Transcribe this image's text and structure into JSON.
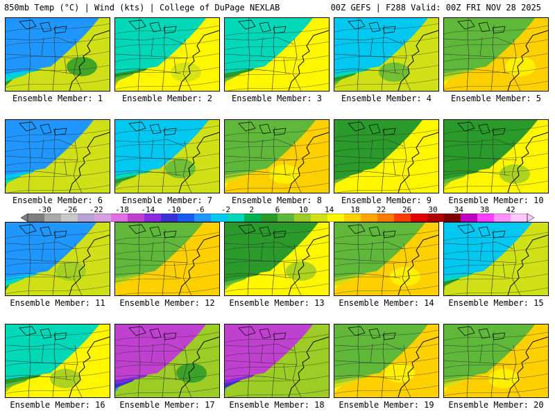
{
  "header": {
    "left": "850mb Temp (°C) | Wind (kts) | College of DuPage NEXLAB",
    "right": "00Z GEFS | F288 Valid: 00Z FRI NOV 28 2025"
  },
  "colorbar": {
    "labels": [
      "-30",
      "-26",
      "-22",
      "-18",
      "-14",
      "-10",
      "-6",
      "-2",
      "2",
      "6",
      "10",
      "14",
      "18",
      "22",
      "26",
      "30",
      "34",
      "38",
      "42"
    ],
    "colors": [
      "#7f7f7f",
      "#a9a9a9",
      "#c8c8c8",
      "#b9a3d6",
      "#d7a0e0",
      "#e070e6",
      "#c040d0",
      "#8a2be2",
      "#3b32d6",
      "#1a5bf0",
      "#1f97ff",
      "#00c8f0",
      "#00d8b8",
      "#00b050",
      "#2a9a2a",
      "#5fb83a",
      "#9ccc25",
      "#cfe017",
      "#fff600",
      "#ffd000",
      "#ffa500",
      "#ff7a00",
      "#ff3c00",
      "#e00000",
      "#b00000",
      "#800000",
      "#c000c0",
      "#ff40ff",
      "#ff90ff",
      "#ffc8ff"
    ]
  },
  "members": [
    {
      "caption": "Ensemble Member: 1",
      "theme": "cold"
    },
    {
      "caption": "Ensemble Member: 2",
      "theme": "mild"
    },
    {
      "caption": "Ensemble Member: 3",
      "theme": "mild"
    },
    {
      "caption": "Ensemble Member: 4",
      "theme": "cool"
    },
    {
      "caption": "Ensemble Member: 5",
      "theme": "warm"
    },
    {
      "caption": "Ensemble Member: 6",
      "theme": "cold"
    },
    {
      "caption": "Ensemble Member: 7",
      "theme": "cool"
    },
    {
      "caption": "Ensemble Member: 8",
      "theme": "warm"
    },
    {
      "caption": "Ensemble Member: 9",
      "theme": "green"
    },
    {
      "caption": "Ensemble Member: 10",
      "theme": "green"
    },
    {
      "caption": "Ensemble Member: 11",
      "theme": "cold"
    },
    {
      "caption": "Ensemble Member: 12",
      "theme": "warm"
    },
    {
      "caption": "Ensemble Member: 13",
      "theme": "green"
    },
    {
      "caption": "Ensemble Member: 14",
      "theme": "warm"
    },
    {
      "caption": "Ensemble Member: 15",
      "theme": "cool"
    },
    {
      "caption": "Ensemble Member: 16",
      "theme": "mild"
    },
    {
      "caption": "Ensemble Member: 17",
      "theme": "verycold"
    },
    {
      "caption": "Ensemble Member: 18",
      "theme": "verycold"
    },
    {
      "caption": "Ensemble Member: 19",
      "theme": "warm"
    },
    {
      "caption": "Ensemble Member: 20",
      "theme": "warm"
    }
  ],
  "themes": {
    "cold": [
      "#1f97ff",
      "#00c8f0",
      "#00d8b8",
      "#2a9a2a",
      "#9ccc25",
      "#cfe017"
    ],
    "verycold": [
      "#c040d0",
      "#8a2be2",
      "#3b32d6",
      "#1f97ff",
      "#2a9a2a",
      "#9ccc25"
    ],
    "cool": [
      "#00c8f0",
      "#00d8b8",
      "#2a9a2a",
      "#5fb83a",
      "#9ccc25",
      "#cfe017"
    ],
    "mild": [
      "#00d8b8",
      "#2a9a2a",
      "#5fb83a",
      "#9ccc25",
      "#cfe017",
      "#fff600"
    ],
    "warm": [
      "#5fb83a",
      "#9ccc25",
      "#cfe017",
      "#fff600",
      "#fff600",
      "#ffd000"
    ],
    "green": [
      "#2a9a2a",
      "#2a9a2a",
      "#5fb83a",
      "#9ccc25",
      "#cfe017",
      "#fff600"
    ]
  }
}
